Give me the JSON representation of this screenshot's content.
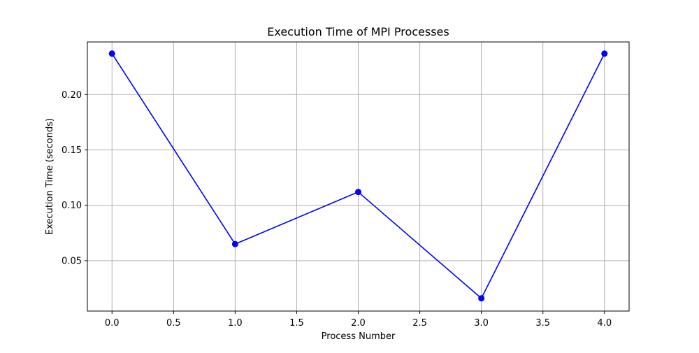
{
  "chart_data": {
    "type": "line",
    "title": "Execution Time of MPI Processes",
    "xlabel": "Process Number",
    "ylabel": "Execution Time (seconds)",
    "xlim": [
      -0.2,
      4.2
    ],
    "ylim": [
      0.0045,
      0.2475
    ],
    "x_ticks": [
      0.0,
      0.5,
      1.0,
      1.5,
      2.0,
      2.5,
      3.0,
      3.5,
      4.0
    ],
    "x_tick_labels": [
      "0.0",
      "0.5",
      "1.0",
      "1.5",
      "2.0",
      "2.5",
      "3.0",
      "3.5",
      "4.0"
    ],
    "y_ticks": [
      0.05,
      0.1,
      0.15,
      0.2
    ],
    "y_tick_labels": [
      "0.05",
      "0.10",
      "0.15",
      "0.20"
    ],
    "grid": true,
    "legend": "none",
    "series": [
      {
        "color": "#0000ff",
        "marker": "circle",
        "x": [
          0,
          1,
          2,
          3,
          4
        ],
        "y": [
          0.237,
          0.065,
          0.112,
          0.016,
          0.237
        ]
      }
    ]
  }
}
